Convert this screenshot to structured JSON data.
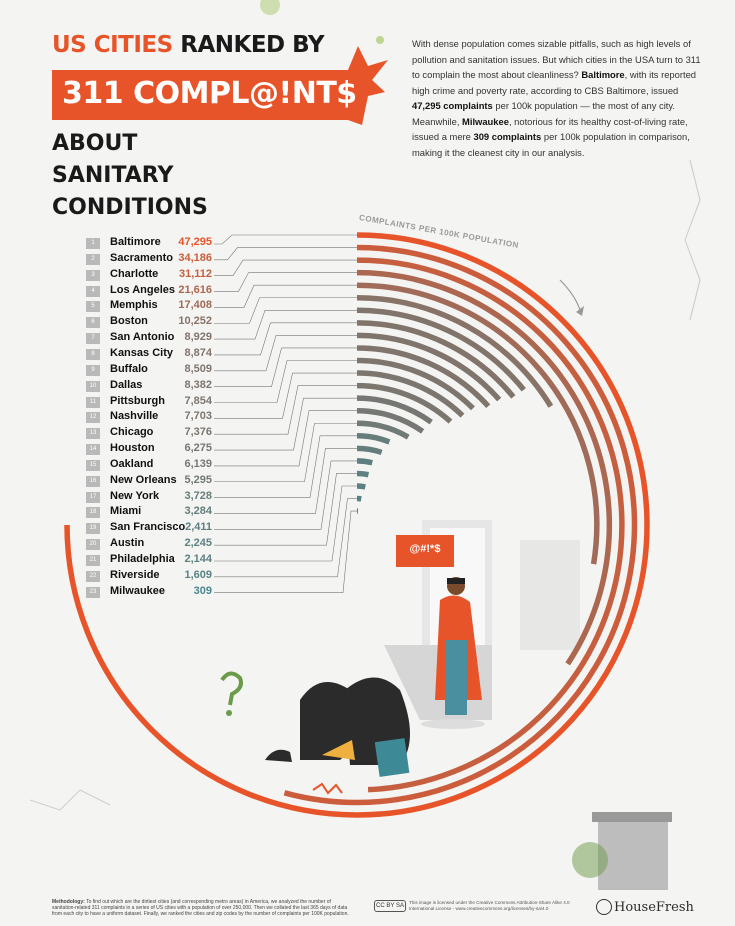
{
  "title": {
    "line1_red": "US CITIES",
    "line1_black": "RANKED BY",
    "banner": "311 COMPL@!NT$",
    "line2": "ABOUT SANITARY",
    "line3": "CONDITIONS"
  },
  "intro": {
    "p1": "With dense population comes sizable pitfalls, such as high levels of pollution and sanitation issues. But which cities in the USA turn to 311 to complain the most about cleanliness?",
    "b1": "Baltimore",
    "p2": ", with its reported high crime and poverty rate, according to CBS Baltimore, issued",
    "b2": "47,295 complaints",
    "p3": "per 100k population — the most of any city. Meanwhile,",
    "b3": "Milwaukee",
    "p4": ", notorious for its healthy cost-of-living rate, issued a mere",
    "b4": "309 complaints",
    "p5": "per 100k population in comparison, making it the cleanest city in our analysis."
  },
  "speech_bubble": "@#!*$",
  "chart_data": {
    "type": "bar",
    "layout": "radial",
    "xlabel": "COMPLAINTS PER 100K POPULATION",
    "colors": {
      "high": "#e8542a",
      "low": "#3d8a96"
    },
    "ranks": [
      "1",
      "2",
      "3",
      "4",
      "5",
      "6",
      "7",
      "8",
      "9",
      "10",
      "11",
      "12",
      "13",
      "14",
      "15",
      "16",
      "17",
      "18",
      "19",
      "20",
      "21",
      "22",
      "23"
    ],
    "categories": [
      "Baltimore",
      "Sacramento",
      "Charlotte",
      "Los Angeles",
      "Memphis",
      "Boston",
      "San Antonio",
      "Kansas City",
      "Buffalo",
      "Dallas",
      "Pittsburgh",
      "Nashville",
      "Chicago",
      "Houston",
      "Oakland",
      "New Orleans",
      "New York",
      "Miami",
      "San Francisco",
      "Austin",
      "Philadelphia",
      "Riverside",
      "Milwaukee"
    ],
    "labels": [
      "47,295",
      "34,186",
      "31,112",
      "21,616",
      "17,408",
      "10,252",
      "8,929",
      "8,874",
      "8,509",
      "8,382",
      "7,854",
      "7,703",
      "7,376",
      "6,275",
      "6,139",
      "5,295",
      "3,728",
      "3,284",
      "2,411",
      "2,245",
      "2,144",
      "1,609",
      "309"
    ],
    "values": [
      47295,
      34186,
      31112,
      21616,
      17408,
      10252,
      8929,
      8874,
      8509,
      8382,
      7854,
      7703,
      7376,
      6275,
      6139,
      5295,
      3728,
      3284,
      2411,
      2245,
      2144,
      1609,
      309
    ]
  },
  "footer": {
    "methodology_label": "Methodology:",
    "methodology": "To find out which are the dirtiest cities (and corresponding metro areas) in America, we analyzed the number of sanitation-related 311 complaints in a series of US cities with a population of over 250,000. Then we collated the last 365 days of data from each city to have a uniform dataset. Finally, we ranked the cities and zip codes by the number of complaints per 100K population.",
    "cc_badge": "CC BY SA",
    "license": "This image is licensed under the Creative Commons Attribution-Share Alike 4.0 International License - www.creativecommons.org/licenses/by-sa/4.0",
    "brand": "HouseFresh"
  }
}
